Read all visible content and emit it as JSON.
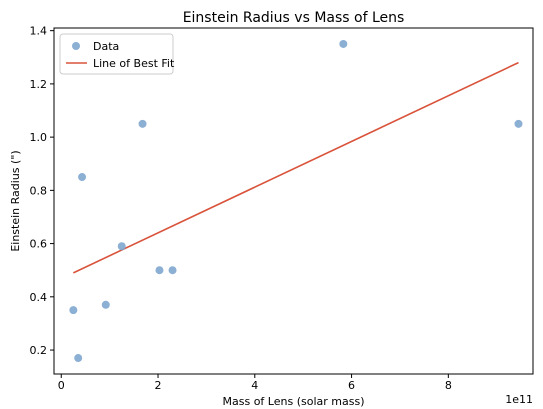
{
  "chart_data": {
    "type": "scatter",
    "title": "Einstein Radius vs Mass of Lens",
    "xlabel": "Mass of Lens (solar mass)",
    "ylabel": "Einstein Radius (\")",
    "x_offset_label": "1e11",
    "xlim": [
      -0.15,
      9.75
    ],
    "ylim": [
      0.11,
      1.41
    ],
    "xticks": [
      0,
      2,
      4,
      6,
      8
    ],
    "yticks": [
      0.2,
      0.4,
      0.6,
      0.8,
      1.0,
      1.2,
      1.4
    ],
    "xtick_labels": [
      "0",
      "2",
      "4",
      "6",
      "8"
    ],
    "ytick_labels": [
      "0.2",
      "0.4",
      "0.6",
      "0.8",
      "1.0",
      "1.2",
      "1.4"
    ],
    "grid": false,
    "legend_position": "top-left",
    "series": [
      {
        "name": "Data",
        "kind": "scatter",
        "color": "#7fa6cf",
        "points": [
          {
            "x": 0.25,
            "y": 0.35
          },
          {
            "x": 0.35,
            "y": 0.17
          },
          {
            "x": 0.43,
            "y": 0.85
          },
          {
            "x": 0.92,
            "y": 0.37
          },
          {
            "x": 1.25,
            "y": 0.59
          },
          {
            "x": 1.68,
            "y": 1.05
          },
          {
            "x": 2.03,
            "y": 0.5
          },
          {
            "x": 2.3,
            "y": 0.5
          },
          {
            "x": 5.83,
            "y": 1.35
          },
          {
            "x": 9.45,
            "y": 1.05
          }
        ]
      },
      {
        "name": "Line of Best Fit",
        "kind": "line",
        "color": "#d9533b",
        "points": [
          {
            "x": 0.25,
            "y": 0.49
          },
          {
            "x": 9.45,
            "y": 1.28
          }
        ]
      }
    ]
  }
}
